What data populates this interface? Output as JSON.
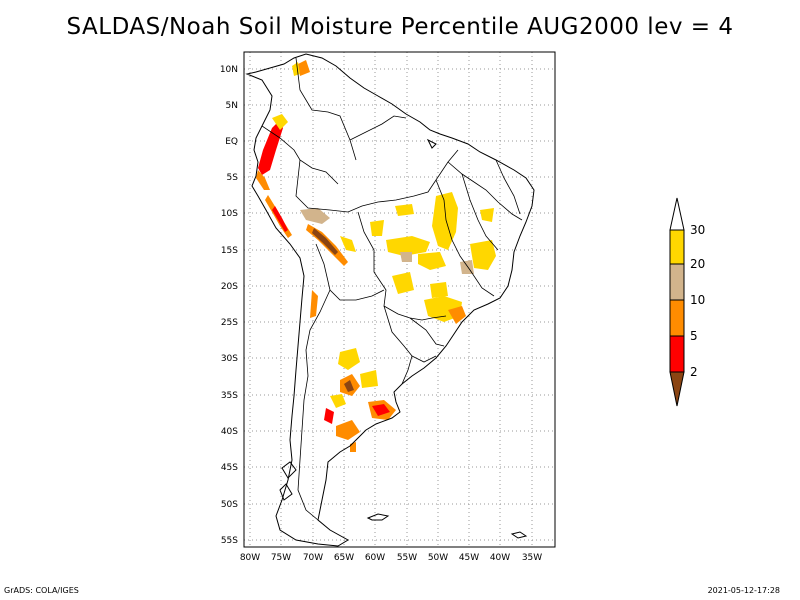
{
  "title": "SALDAS/Noah Soil Moisture Percentile AUG2000 lev = 4",
  "footer": {
    "left": "GrADS: COLA/IGES",
    "right": "2021-05-12-17:28"
  },
  "map": {
    "region": "South America",
    "lat_labels": [
      "10N",
      "5N",
      "EQ",
      "5S",
      "10S",
      "15S",
      "20S",
      "25S",
      "30S",
      "35S",
      "40S",
      "45S",
      "50S",
      "55S"
    ],
    "lon_labels": [
      "80W",
      "75W",
      "70W",
      "65W",
      "60W",
      "55W",
      "50W",
      "45W",
      "40W",
      "35W"
    ],
    "grid": "dotted"
  },
  "legend": {
    "labels": [
      "2",
      "5",
      "10",
      "20",
      "30"
    ],
    "colors": [
      "#8b4513",
      "#ff0000",
      "#ff8c00",
      "#d2b48c",
      "#ffd700",
      "#ffffff"
    ]
  }
}
